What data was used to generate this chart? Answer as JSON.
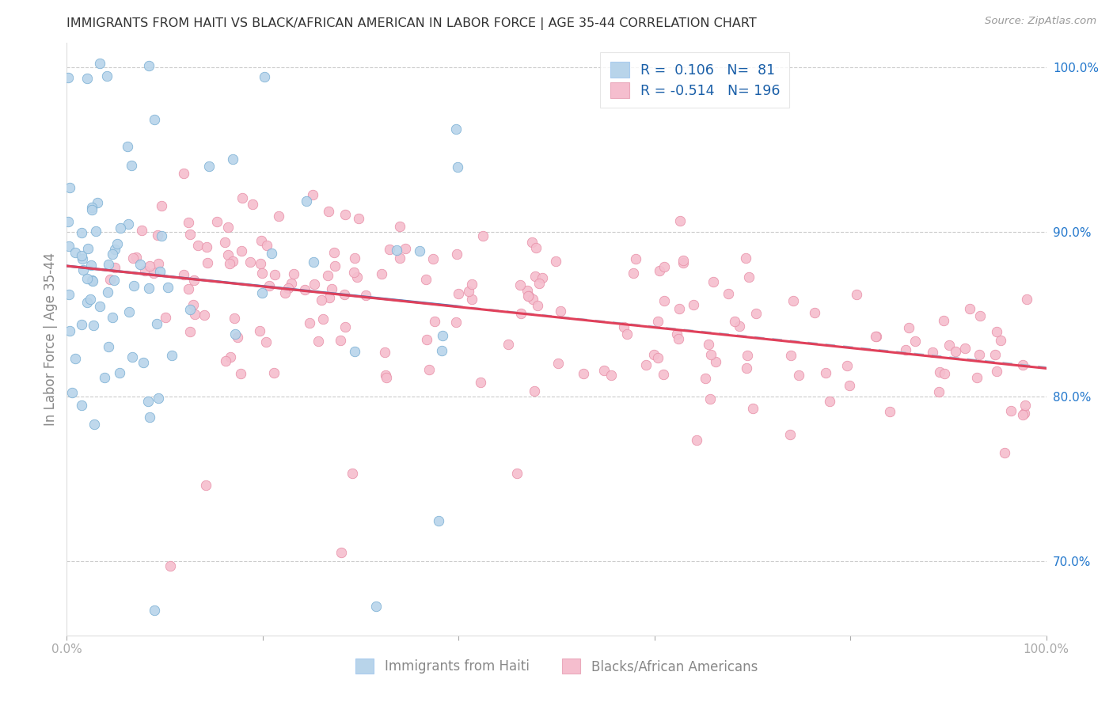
{
  "title": "IMMIGRANTS FROM HAITI VS BLACK/AFRICAN AMERICAN IN LABOR FORCE | AGE 35-44 CORRELATION CHART",
  "source": "Source: ZipAtlas.com",
  "ylabel": "In Labor Force | Age 35-44",
  "ylabel_right_ticks": [
    "100.0%",
    "90.0%",
    "80.0%",
    "70.0%"
  ],
  "ylabel_right_vals": [
    1.0,
    0.9,
    0.8,
    0.7
  ],
  "r_haiti": 0.106,
  "n_haiti": 81,
  "r_black": -0.514,
  "n_black": 196,
  "xmin": 0.0,
  "xmax": 1.0,
  "ymin": 0.655,
  "ymax": 1.015,
  "scatter_color_haiti": "#b8d4ea",
  "scatter_edge_haiti": "#7aafd4",
  "scatter_color_black": "#f5bece",
  "scatter_edge_black": "#e890a8",
  "line_color_haiti": "#3a7abf",
  "line_color_black": "#e0405a",
  "legend_label_haiti": "Immigrants from Haiti",
  "legend_label_black": "Blacks/African Americans",
  "legend_box_color_haiti": "#b8d4ea",
  "legend_box_color_black": "#f5bece",
  "legend_text_color": "#1a5fa8",
  "background_color": "#ffffff",
  "grid_color": "#cccccc",
  "title_color": "#333333",
  "axis_color": "#aaaaaa",
  "dashed_extension_color": "#a0b8d0",
  "marker_size": 9,
  "seed_haiti": 7,
  "seed_black": 99
}
